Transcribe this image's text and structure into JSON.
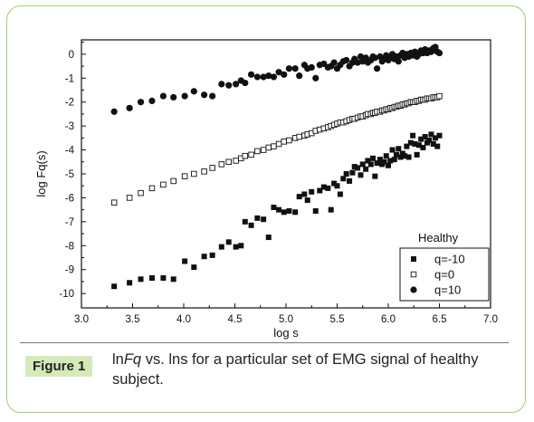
{
  "figure": {
    "label": "Figure 1",
    "caption_lead": "ln",
    "caption_italic": "Fq",
    "caption_rest": " vs.  lns for a particular set of EMG signal of healthy subject."
  },
  "chart_data": {
    "type": "scatter",
    "title": "",
    "xlabel": "log s",
    "ylabel": "log Fq(s)",
    "xlim": [
      3.0,
      7.0
    ],
    "ylim": [
      -10.6,
      0.6
    ],
    "xticks": [
      "3.0",
      "3.5",
      "4.0",
      "4.5",
      "5.0",
      "5.5",
      "6.0",
      "6.5",
      "7.0"
    ],
    "yticks": [
      "0",
      "-1",
      "-2",
      "-3",
      "-4",
      "-5",
      "-6",
      "-7",
      "-8",
      "-9",
      "-10"
    ],
    "grid": false,
    "legend": {
      "title": "Healthy",
      "position": "bottom-right"
    },
    "series": [
      {
        "name": "q=-10",
        "marker": "filled-square",
        "color": "#111111",
        "points": [
          [
            3.32,
            -9.7
          ],
          [
            3.47,
            -9.55
          ],
          [
            3.58,
            -9.4
          ],
          [
            3.69,
            -9.35
          ],
          [
            3.8,
            -9.35
          ],
          [
            3.9,
            -9.4
          ],
          [
            4.01,
            -8.65
          ],
          [
            4.1,
            -8.9
          ],
          [
            4.2,
            -8.45
          ],
          [
            4.28,
            -8.4
          ],
          [
            4.37,
            -8.05
          ],
          [
            4.44,
            -7.85
          ],
          [
            4.51,
            -8.05
          ],
          [
            4.56,
            -8.0
          ],
          [
            4.6,
            -7.0
          ],
          [
            4.66,
            -7.15
          ],
          [
            4.72,
            -6.85
          ],
          [
            4.78,
            -6.9
          ],
          [
            4.83,
            -7.65
          ],
          [
            4.88,
            -6.4
          ],
          [
            4.93,
            -6.5
          ],
          [
            4.98,
            -6.6
          ],
          [
            5.03,
            -6.55
          ],
          [
            5.09,
            -6.6
          ],
          [
            5.13,
            -5.95
          ],
          [
            5.18,
            -5.85
          ],
          [
            5.21,
            -6.1
          ],
          [
            5.25,
            -5.75
          ],
          [
            5.29,
            -6.55
          ],
          [
            5.33,
            -5.7
          ],
          [
            5.37,
            -5.55
          ],
          [
            5.41,
            -5.6
          ],
          [
            5.44,
            -6.5
          ],
          [
            5.47,
            -5.4
          ],
          [
            5.5,
            -5.5
          ],
          [
            5.53,
            -5.85
          ],
          [
            5.56,
            -5.2
          ],
          [
            5.59,
            -5.0
          ],
          [
            5.62,
            -5.3
          ],
          [
            5.65,
            -4.95
          ],
          [
            5.67,
            -4.7
          ],
          [
            5.7,
            -4.75
          ],
          [
            5.73,
            -5.05
          ],
          [
            5.75,
            -4.6
          ],
          [
            5.78,
            -4.8
          ],
          [
            5.8,
            -4.45
          ],
          [
            5.83,
            -4.6
          ],
          [
            5.85,
            -4.35
          ],
          [
            5.87,
            -5.1
          ],
          [
            5.89,
            -4.55
          ],
          [
            5.92,
            -4.4
          ],
          [
            5.94,
            -4.6
          ],
          [
            5.96,
            -4.5
          ],
          [
            5.98,
            -4.25
          ],
          [
            6.0,
            -4.65
          ],
          [
            6.02,
            -4.45
          ],
          [
            6.04,
            -4.0
          ],
          [
            6.06,
            -4.4
          ],
          [
            6.08,
            -4.2
          ],
          [
            6.1,
            -3.95
          ],
          [
            6.12,
            -4.3
          ],
          [
            6.14,
            -4.15
          ],
          [
            6.16,
            -4.25
          ],
          [
            6.18,
            -3.85
          ],
          [
            6.2,
            -4.3
          ],
          [
            6.22,
            -3.7
          ],
          [
            6.24,
            -3.4
          ],
          [
            6.26,
            -3.75
          ],
          [
            6.28,
            -4.2
          ],
          [
            6.3,
            -3.8
          ],
          [
            6.32,
            -3.55
          ],
          [
            6.34,
            -3.9
          ],
          [
            6.36,
            -3.45
          ],
          [
            6.38,
            -3.7
          ],
          [
            6.4,
            -3.6
          ],
          [
            6.42,
            -3.35
          ],
          [
            6.44,
            -3.75
          ],
          [
            6.46,
            -3.5
          ],
          [
            6.48,
            -3.85
          ],
          [
            6.5,
            -3.4
          ]
        ]
      },
      {
        "name": "q=0",
        "marker": "open-square",
        "color": "#111111",
        "points": [
          [
            3.32,
            -6.2
          ],
          [
            3.47,
            -6.0
          ],
          [
            3.58,
            -5.8
          ],
          [
            3.69,
            -5.6
          ],
          [
            3.8,
            -5.45
          ],
          [
            3.9,
            -5.3
          ],
          [
            4.01,
            -5.1
          ],
          [
            4.1,
            -5.0
          ],
          [
            4.2,
            -4.9
          ],
          [
            4.28,
            -4.75
          ],
          [
            4.37,
            -4.6
          ],
          [
            4.44,
            -4.5
          ],
          [
            4.51,
            -4.45
          ],
          [
            4.56,
            -4.35
          ],
          [
            4.6,
            -4.25
          ],
          [
            4.66,
            -4.2
          ],
          [
            4.72,
            -4.05
          ],
          [
            4.78,
            -4.0
          ],
          [
            4.83,
            -3.9
          ],
          [
            4.88,
            -3.85
          ],
          [
            4.93,
            -3.75
          ],
          [
            4.98,
            -3.65
          ],
          [
            5.03,
            -3.6
          ],
          [
            5.09,
            -3.5
          ],
          [
            5.13,
            -3.45
          ],
          [
            5.18,
            -3.4
          ],
          [
            5.21,
            -3.35
          ],
          [
            5.25,
            -3.3
          ],
          [
            5.29,
            -3.2
          ],
          [
            5.33,
            -3.15
          ],
          [
            5.37,
            -3.1
          ],
          [
            5.41,
            -3.05
          ],
          [
            5.44,
            -3.0
          ],
          [
            5.47,
            -2.95
          ],
          [
            5.5,
            -2.9
          ],
          [
            5.53,
            -2.85
          ],
          [
            5.56,
            -2.85
          ],
          [
            5.59,
            -2.8
          ],
          [
            5.62,
            -2.75
          ],
          [
            5.65,
            -2.7
          ],
          [
            5.67,
            -2.7
          ],
          [
            5.7,
            -2.65
          ],
          [
            5.73,
            -2.6
          ],
          [
            5.75,
            -2.6
          ],
          [
            5.78,
            -2.55
          ],
          [
            5.8,
            -2.5
          ],
          [
            5.83,
            -2.5
          ],
          [
            5.85,
            -2.45
          ],
          [
            5.87,
            -2.45
          ],
          [
            5.89,
            -2.4
          ],
          [
            5.92,
            -2.4
          ],
          [
            5.94,
            -2.35
          ],
          [
            5.96,
            -2.35
          ],
          [
            5.98,
            -2.3
          ],
          [
            6.0,
            -2.3
          ],
          [
            6.02,
            -2.25
          ],
          [
            6.04,
            -2.25
          ],
          [
            6.06,
            -2.2
          ],
          [
            6.08,
            -2.2
          ],
          [
            6.1,
            -2.15
          ],
          [
            6.12,
            -2.15
          ],
          [
            6.14,
            -2.1
          ],
          [
            6.16,
            -2.1
          ],
          [
            6.18,
            -2.05
          ],
          [
            6.2,
            -2.05
          ],
          [
            6.22,
            -2.0
          ],
          [
            6.24,
            -2.0
          ],
          [
            6.26,
            -2.0
          ],
          [
            6.28,
            -1.95
          ],
          [
            6.3,
            -1.95
          ],
          [
            6.32,
            -1.9
          ],
          [
            6.34,
            -1.9
          ],
          [
            6.36,
            -1.9
          ],
          [
            6.38,
            -1.85
          ],
          [
            6.4,
            -1.85
          ],
          [
            6.42,
            -1.85
          ],
          [
            6.44,
            -1.8
          ],
          [
            6.46,
            -1.8
          ],
          [
            6.48,
            -1.8
          ],
          [
            6.5,
            -1.75
          ]
        ]
      },
      {
        "name": "q=10",
        "marker": "filled-circle",
        "color": "#111111",
        "points": [
          [
            3.32,
            -2.4
          ],
          [
            3.47,
            -2.25
          ],
          [
            3.58,
            -2.0
          ],
          [
            3.69,
            -1.95
          ],
          [
            3.8,
            -1.75
          ],
          [
            3.9,
            -1.8
          ],
          [
            4.01,
            -1.75
          ],
          [
            4.1,
            -1.55
          ],
          [
            4.2,
            -1.7
          ],
          [
            4.28,
            -1.75
          ],
          [
            4.37,
            -1.25
          ],
          [
            4.44,
            -1.3
          ],
          [
            4.51,
            -1.25
          ],
          [
            4.56,
            -1.1
          ],
          [
            4.6,
            -1.2
          ],
          [
            4.66,
            -0.85
          ],
          [
            4.72,
            -0.95
          ],
          [
            4.78,
            -0.95
          ],
          [
            4.83,
            -0.9
          ],
          [
            4.88,
            -0.95
          ],
          [
            4.93,
            -0.75
          ],
          [
            4.98,
            -0.85
          ],
          [
            5.03,
            -0.6
          ],
          [
            5.09,
            -0.6
          ],
          [
            5.13,
            -0.9
          ],
          [
            5.18,
            -0.45
          ],
          [
            5.21,
            -0.6
          ],
          [
            5.25,
            -0.55
          ],
          [
            5.29,
            -1.0
          ],
          [
            5.33,
            -0.45
          ],
          [
            5.37,
            -0.4
          ],
          [
            5.41,
            -0.55
          ],
          [
            5.44,
            -0.5
          ],
          [
            5.47,
            -0.35
          ],
          [
            5.5,
            -0.6
          ],
          [
            5.53,
            -0.45
          ],
          [
            5.56,
            -0.3
          ],
          [
            5.59,
            -0.25
          ],
          [
            5.62,
            -0.5
          ],
          [
            5.65,
            -0.35
          ],
          [
            5.67,
            -0.2
          ],
          [
            5.7,
            -0.35
          ],
          [
            5.73,
            -0.1
          ],
          [
            5.75,
            -0.3
          ],
          [
            5.78,
            -0.15
          ],
          [
            5.8,
            -0.35
          ],
          [
            5.83,
            -0.25
          ],
          [
            5.85,
            -0.1
          ],
          [
            5.87,
            -0.15
          ],
          [
            5.89,
            -0.6
          ],
          [
            5.92,
            -0.1
          ],
          [
            5.94,
            -0.3
          ],
          [
            5.96,
            -0.2
          ],
          [
            5.98,
            -0.05
          ],
          [
            6.0,
            -0.25
          ],
          [
            6.02,
            -0.15
          ],
          [
            6.04,
            0.0
          ],
          [
            6.06,
            -0.2
          ],
          [
            6.08,
            -0.1
          ],
          [
            6.1,
            -0.3
          ],
          [
            6.12,
            -0.05
          ],
          [
            6.14,
            0.05
          ],
          [
            6.16,
            -0.15
          ],
          [
            6.18,
            0.0
          ],
          [
            6.2,
            -0.1
          ],
          [
            6.22,
            0.05
          ],
          [
            6.24,
            -0.05
          ],
          [
            6.26,
            0.1
          ],
          [
            6.28,
            -0.1
          ],
          [
            6.3,
            0.0
          ],
          [
            6.32,
            0.15
          ],
          [
            6.34,
            0.05
          ],
          [
            6.36,
            0.2
          ],
          [
            6.38,
            0.05
          ],
          [
            6.4,
            0.15
          ],
          [
            6.42,
            0.1
          ],
          [
            6.44,
            0.25
          ],
          [
            6.46,
            0.3
          ],
          [
            6.48,
            0.1
          ],
          [
            6.5,
            0.05
          ]
        ]
      }
    ]
  }
}
